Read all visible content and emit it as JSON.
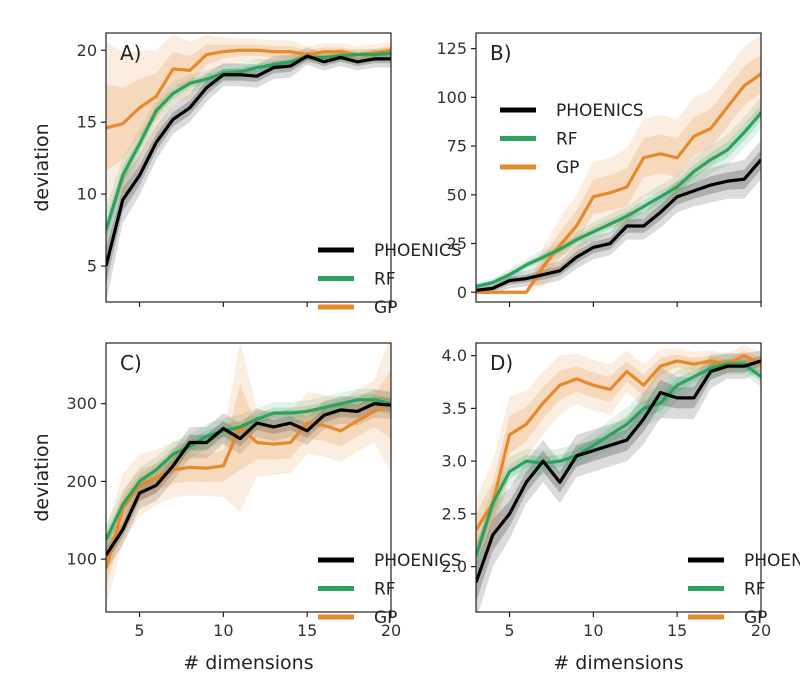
{
  "chart_data": [
    {
      "type": "line",
      "panel_label": "A)",
      "ylabel": "deviation",
      "xlabel": "",
      "xlim": [
        3,
        20
      ],
      "ylim": [
        2.5,
        21.2
      ],
      "yticks": [
        5,
        10,
        15,
        20
      ],
      "ytick_labels": [
        "5",
        "10",
        "15",
        "20"
      ],
      "xticks": [
        5,
        10,
        15,
        20
      ],
      "xtick_labels": [],
      "legend_position": "bottom-right",
      "series": [
        {
          "name": "PHOENICS",
          "color": "#000000",
          "x": [
            3,
            4,
            5,
            6,
            7,
            8,
            9,
            10,
            11,
            12,
            13,
            14,
            15,
            16,
            17,
            18,
            19,
            20
          ],
          "values": [
            5,
            9.6,
            11.3,
            13.6,
            15.2,
            16,
            17.4,
            18.3,
            18.3,
            18.2,
            18.8,
            18.9,
            19.6,
            19.2,
            19.5,
            19.2,
            19.4,
            19.4
          ],
          "band": [
            1.3,
            0.8,
            0.7,
            0.6,
            0.5,
            0.5,
            0.5,
            0.4,
            0.4,
            0.4,
            0.4,
            0.4,
            0.3,
            0.3,
            0.3,
            0.3,
            0.3,
            0.3
          ]
        },
        {
          "name": "RF",
          "color": "#2ca25f",
          "x": [
            3,
            4,
            5,
            6,
            7,
            8,
            9,
            10,
            11,
            12,
            13,
            14,
            15,
            16,
            17,
            18,
            19,
            20
          ],
          "values": [
            7.5,
            11.3,
            13.5,
            15.8,
            17,
            17.7,
            18,
            18.4,
            18.5,
            18.8,
            19,
            19.2,
            19.5,
            19.5,
            19.6,
            19.7,
            19.7,
            19.8
          ],
          "band": [
            0.8,
            0.6,
            0.5,
            0.4,
            0.4,
            0.3,
            0.3,
            0.3,
            0.3,
            0.3,
            0.2,
            0.2,
            0.2,
            0.2,
            0.2,
            0.2,
            0.2,
            0.2
          ]
        },
        {
          "name": "GP",
          "color": "#e6892b",
          "x": [
            3,
            4,
            5,
            6,
            7,
            8,
            9,
            10,
            11,
            12,
            13,
            14,
            15,
            16,
            17,
            18,
            19,
            20
          ],
          "values": [
            14.6,
            14.9,
            16,
            16.8,
            18.7,
            18.6,
            19.7,
            19.9,
            20,
            20,
            19.9,
            19.9,
            19.7,
            19.9,
            19.9,
            19.7,
            19.8,
            20
          ],
          "band": [
            3,
            2.5,
            2,
            1.6,
            1.2,
            1,
            0.7,
            0.5,
            0.4,
            0.4,
            0.4,
            0.4,
            0.3,
            0.3,
            0.3,
            0.3,
            0.3,
            0.3
          ]
        }
      ]
    },
    {
      "type": "line",
      "panel_label": "B)",
      "ylabel": "",
      "xlabel": "",
      "xlim": [
        3,
        20
      ],
      "ylim": [
        -5,
        133
      ],
      "yticks": [
        0,
        25,
        50,
        75,
        100,
        125
      ],
      "ytick_labels": [
        "0",
        "25",
        "50",
        "75",
        "100",
        "125"
      ],
      "xticks": [
        5,
        10,
        15,
        20
      ],
      "xtick_labels": [],
      "legend_position": "upper-left",
      "series": [
        {
          "name": "PHOENICS",
          "color": "#000000",
          "x": [
            3,
            4,
            5,
            6,
            7,
            8,
            9,
            10,
            11,
            12,
            13,
            14,
            15,
            16,
            17,
            18,
            19,
            20
          ],
          "values": [
            1,
            2,
            6,
            7,
            9,
            11,
            18,
            23,
            25,
            34,
            34,
            41,
            49,
            52,
            55,
            57,
            58,
            68
          ],
          "band": [
            1,
            1.5,
            2,
            2,
            2.5,
            2.5,
            3,
            3,
            3,
            3.5,
            3.5,
            4,
            4,
            4,
            4.5,
            4.5,
            5,
            5
          ]
        },
        {
          "name": "RF",
          "color": "#2ca25f",
          "x": [
            3,
            4,
            5,
            6,
            7,
            8,
            9,
            10,
            11,
            12,
            13,
            14,
            15,
            16,
            17,
            18,
            19,
            20
          ],
          "values": [
            3,
            5,
            9,
            14,
            18,
            22,
            27,
            31,
            35,
            39,
            44,
            49,
            54,
            62,
            68,
            73,
            82,
            92
          ],
          "band": [
            1,
            1,
            1.5,
            1.5,
            2,
            2,
            2,
            2.5,
            2.5,
            2.5,
            3,
            3,
            3,
            3.5,
            3.5,
            4,
            4,
            4
          ]
        },
        {
          "name": "GP",
          "color": "#e6892b",
          "x": [
            3,
            4,
            5,
            6,
            7,
            8,
            9,
            10,
            11,
            12,
            13,
            14,
            15,
            16,
            17,
            18,
            19,
            20
          ],
          "values": [
            0,
            0,
            0,
            0,
            13,
            24,
            34,
            49,
            51,
            54,
            69,
            71,
            69,
            80,
            84,
            95,
            106,
            112
          ],
          "band": [
            0,
            0,
            0,
            0,
            5,
            7,
            8,
            9,
            9,
            10,
            10,
            10,
            10,
            10,
            10,
            10,
            10,
            10
          ]
        }
      ]
    },
    {
      "type": "line",
      "panel_label": "C)",
      "ylabel": "deviation",
      "xlabel": "# dimensions",
      "xlim": [
        3,
        20
      ],
      "ylim": [
        32,
        378
      ],
      "yticks": [
        100,
        200,
        300
      ],
      "ytick_labels": [
        "100",
        "200",
        "300"
      ],
      "xticks": [
        5,
        10,
        15,
        20
      ],
      "xtick_labels": [
        "5",
        "10",
        "15",
        "20"
      ],
      "legend_position": "bottom-right",
      "series": [
        {
          "name": "PHOENICS",
          "color": "#000000",
          "x": [
            3,
            4,
            5,
            6,
            7,
            8,
            9,
            10,
            11,
            12,
            13,
            14,
            15,
            16,
            17,
            18,
            19,
            20
          ],
          "values": [
            105,
            138,
            185,
            195,
            220,
            250,
            250,
            268,
            255,
            275,
            270,
            275,
            265,
            285,
            292,
            290,
            300,
            298
          ],
          "band": [
            10,
            10,
            10,
            10,
            10,
            10,
            10,
            10,
            10,
            9,
            9,
            9,
            9,
            9,
            9,
            9,
            9,
            9
          ]
        },
        {
          "name": "RF",
          "color": "#2ca25f",
          "x": [
            3,
            4,
            5,
            6,
            7,
            8,
            9,
            10,
            11,
            12,
            13,
            14,
            15,
            16,
            17,
            18,
            19,
            20
          ],
          "values": [
            125,
            170,
            200,
            215,
            235,
            245,
            258,
            265,
            270,
            280,
            288,
            288,
            290,
            295,
            300,
            305,
            305,
            300
          ],
          "band": [
            10,
            9,
            9,
            8,
            8,
            8,
            8,
            8,
            8,
            7,
            7,
            7,
            7,
            7,
            7,
            7,
            7,
            7
          ]
        },
        {
          "name": "GP",
          "color": "#e6892b",
          "x": [
            3,
            4,
            5,
            6,
            7,
            8,
            9,
            10,
            11,
            12,
            13,
            14,
            15,
            16,
            17,
            18,
            19,
            20
          ],
          "values": [
            88,
            165,
            195,
            205,
            215,
            218,
            217,
            220,
            270,
            250,
            248,
            250,
            275,
            272,
            265,
            278,
            290,
            300
          ],
          "band": [
            25,
            22,
            20,
            18,
            18,
            18,
            18,
            20,
            55,
            22,
            20,
            20,
            20,
            20,
            20,
            20,
            20,
            45
          ]
        }
      ]
    },
    {
      "type": "line",
      "panel_label": "D)",
      "ylabel": "",
      "xlabel": "# dimensions",
      "xlim": [
        3,
        20
      ],
      "ylim": [
        1.57,
        4.12
      ],
      "yticks": [
        2.0,
        2.5,
        3.0,
        3.5,
        4.0
      ],
      "ytick_labels": [
        "2.0",
        "2.5",
        "3.0",
        "3.5",
        "4.0"
      ],
      "xticks": [
        5,
        10,
        15,
        20
      ],
      "xtick_labels": [
        "5",
        "10",
        "15",
        "20"
      ],
      "legend_position": "bottom-right",
      "series": [
        {
          "name": "PHOENICS",
          "color": "#000000",
          "x": [
            3,
            4,
            5,
            6,
            7,
            8,
            9,
            10,
            11,
            12,
            13,
            14,
            15,
            16,
            17,
            18,
            19,
            20
          ],
          "values": [
            1.85,
            2.3,
            2.5,
            2.8,
            3.0,
            2.8,
            3.05,
            3.1,
            3.15,
            3.2,
            3.4,
            3.65,
            3.6,
            3.6,
            3.85,
            3.9,
            3.9,
            3.95
          ],
          "band": [
            0.18,
            0.15,
            0.12,
            0.1,
            0.1,
            0.1,
            0.1,
            0.1,
            0.1,
            0.1,
            0.12,
            0.12,
            0.1,
            0.1,
            0.08,
            0.06,
            0.06,
            0.05
          ]
        },
        {
          "name": "RF",
          "color": "#2ca25f",
          "x": [
            3,
            4,
            5,
            6,
            7,
            8,
            9,
            10,
            11,
            12,
            13,
            14,
            15,
            16,
            17,
            18,
            19,
            20
          ],
          "values": [
            2.1,
            2.6,
            2.9,
            3.0,
            2.98,
            3.0,
            3.05,
            3.15,
            3.25,
            3.35,
            3.5,
            3.55,
            3.72,
            3.8,
            3.88,
            3.92,
            3.92,
            3.8
          ],
          "band": [
            0.1,
            0.08,
            0.07,
            0.06,
            0.06,
            0.06,
            0.06,
            0.06,
            0.07,
            0.08,
            0.08,
            0.08,
            0.07,
            0.06,
            0.05,
            0.05,
            0.05,
            0.05
          ]
        },
        {
          "name": "GP",
          "color": "#e6892b",
          "x": [
            3,
            4,
            5,
            6,
            7,
            8,
            9,
            10,
            11,
            12,
            13,
            14,
            15,
            16,
            17,
            18,
            19,
            20
          ],
          "values": [
            2.35,
            2.6,
            3.25,
            3.35,
            3.55,
            3.72,
            3.78,
            3.72,
            3.68,
            3.85,
            3.72,
            3.9,
            3.95,
            3.92,
            3.95,
            3.92,
            4.0,
            3.92
          ],
          "band": [
            0.15,
            0.2,
            0.18,
            0.16,
            0.15,
            0.14,
            0.12,
            0.12,
            0.12,
            0.1,
            0.1,
            0.08,
            0.06,
            0.06,
            0.05,
            0.05,
            0.05,
            0.05
          ]
        }
      ]
    }
  ]
}
